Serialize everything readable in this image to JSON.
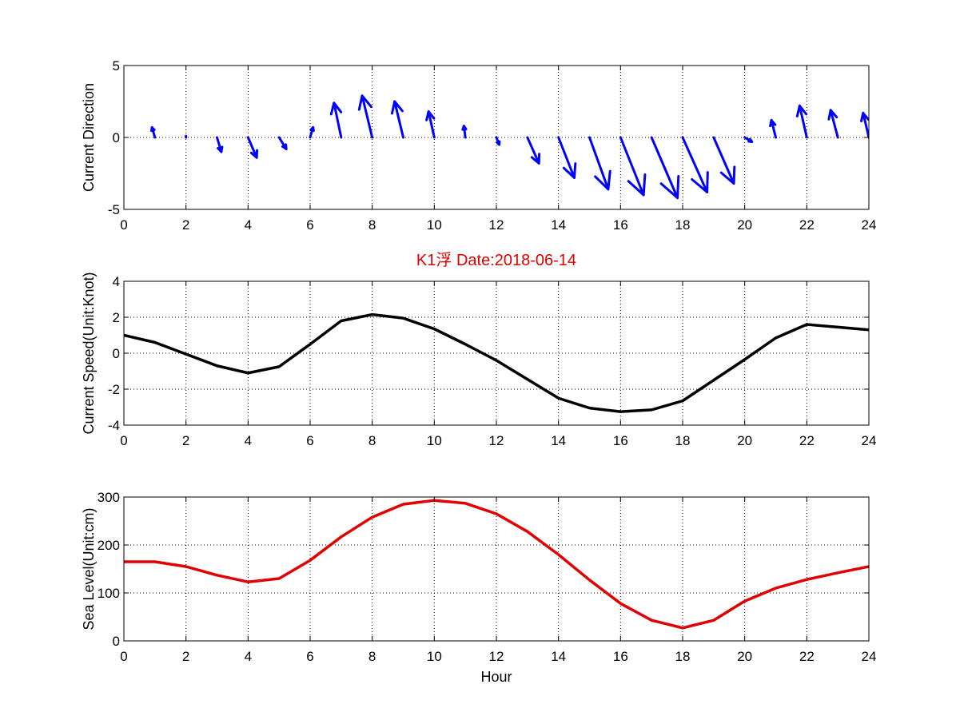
{
  "colors": {
    "direction": "#0000ff",
    "speed": "#000000",
    "level": "#e00000",
    "title": "#e00000"
  },
  "chart_data": [
    {
      "type": "quiver",
      "xlabel": "",
      "ylabel": "Current Direction",
      "xlim": [
        0,
        24
      ],
      "ylim": [
        -5,
        5
      ],
      "xticks": [
        0,
        2,
        4,
        6,
        8,
        10,
        12,
        14,
        16,
        18,
        20,
        22,
        24
      ],
      "yticks": [
        -5,
        0,
        5
      ],
      "grid": true,
      "x": [
        1,
        2,
        3,
        4,
        5,
        6,
        7,
        8,
        9,
        10,
        11,
        12,
        13,
        14,
        15,
        16,
        17,
        18,
        19,
        20,
        21,
        22,
        23,
        24
      ],
      "u": [
        -0.2,
        0.0,
        0.3,
        0.6,
        0.5,
        0.2,
        -0.5,
        -0.7,
        -0.6,
        -0.4,
        -0.1,
        0.2,
        0.8,
        1.1,
        1.3,
        1.6,
        1.8,
        1.7,
        1.4,
        0.5,
        -0.3,
        -0.5,
        -0.5,
        -0.4
      ],
      "v": [
        0.7,
        0.1,
        -1.0,
        -1.4,
        -0.8,
        0.7,
        2.4,
        2.9,
        2.5,
        1.8,
        0.8,
        -0.5,
        -1.8,
        -2.8,
        -3.6,
        -4.0,
        -4.2,
        -3.8,
        -3.2,
        -0.3,
        1.2,
        2.2,
        1.9,
        1.7
      ]
    },
    {
      "type": "line",
      "title": "K1浮 Date:2018-06-14",
      "xlabel": "",
      "ylabel": "Current Speed(Unit:Knot)",
      "xlim": [
        0,
        24
      ],
      "ylim": [
        -4,
        4
      ],
      "xticks": [
        0,
        2,
        4,
        6,
        8,
        10,
        12,
        14,
        16,
        18,
        20,
        22,
        24
      ],
      "yticks": [
        -4,
        -2,
        0,
        2,
        4
      ],
      "grid": true,
      "x": [
        0,
        1,
        2,
        3,
        4,
        5,
        6,
        7,
        8,
        9,
        10,
        11,
        12,
        13,
        14,
        15,
        16,
        17,
        18,
        19,
        20,
        21,
        22,
        23,
        24
      ],
      "y": [
        1.0,
        0.6,
        -0.05,
        -0.7,
        -1.1,
        -0.75,
        0.5,
        1.8,
        2.15,
        1.95,
        1.35,
        0.5,
        -0.4,
        -1.45,
        -2.5,
        -3.05,
        -3.25,
        -3.15,
        -2.65,
        -1.5,
        -0.35,
        0.85,
        1.6,
        1.45,
        1.3
      ]
    },
    {
      "type": "line",
      "xlabel": "Hour",
      "ylabel": "Sea Level(Unit:cm)",
      "xlim": [
        0,
        24
      ],
      "ylim": [
        0,
        300
      ],
      "xticks": [
        0,
        2,
        4,
        6,
        8,
        10,
        12,
        14,
        16,
        18,
        20,
        22,
        24
      ],
      "yticks": [
        0,
        100,
        200,
        300
      ],
      "grid": true,
      "x": [
        0,
        1,
        2,
        3,
        4,
        5,
        6,
        7,
        8,
        9,
        10,
        11,
        12,
        13,
        14,
        15,
        16,
        17,
        18,
        19,
        20,
        21,
        22,
        23,
        24
      ],
      "y": [
        165,
        165,
        155,
        137,
        123,
        130,
        168,
        217,
        258,
        285,
        293,
        287,
        265,
        228,
        180,
        127,
        78,
        43,
        27,
        43,
        83,
        110,
        128,
        142,
        155
      ]
    }
  ]
}
